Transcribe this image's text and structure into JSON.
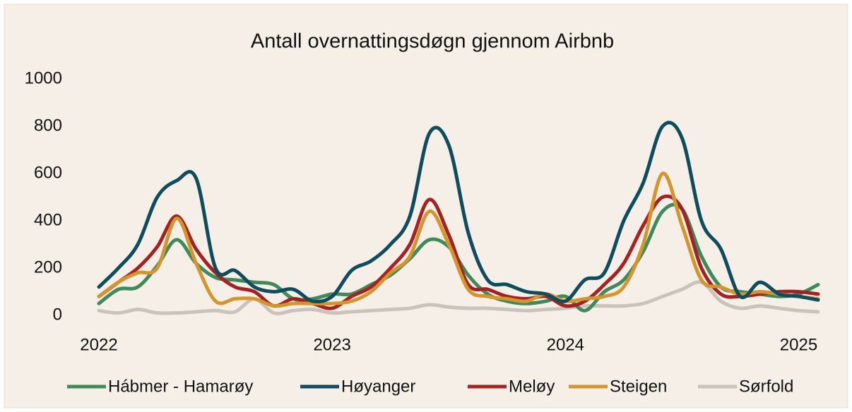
{
  "chart_data": {
    "type": "line",
    "title": "Antall overnattingsdøgn gjennom Airbnb",
    "categories": [
      "2022",
      null,
      null,
      null,
      null,
      null,
      null,
      null,
      null,
      null,
      null,
      null,
      "2023",
      null,
      null,
      null,
      null,
      null,
      null,
      null,
      null,
      null,
      null,
      null,
      "2024",
      null,
      null,
      null,
      null,
      null,
      null,
      null,
      null,
      null,
      null,
      null,
      "2025",
      null
    ],
    "series": [
      {
        "name": "Hábmer - Hamarøy",
        "color": "#3e8a5a",
        "values": [
          50,
          110,
          120,
          210,
          320,
          220,
          160,
          150,
          140,
          130,
          70,
          70,
          90,
          90,
          130,
          170,
          240,
          320,
          290,
          170,
          90,
          60,
          50,
          60,
          80,
          20,
          100,
          150,
          270,
          440,
          450,
          250,
          120,
          100,
          90,
          80,
          90,
          130
        ]
      },
      {
        "name": "Høyanger",
        "color": "#0e4d5e",
        "values": [
          120,
          200,
          300,
          500,
          570,
          580,
          200,
          190,
          120,
          100,
          110,
          60,
          80,
          190,
          230,
          300,
          420,
          770,
          720,
          350,
          150,
          130,
          100,
          90,
          60,
          150,
          180,
          400,
          560,
          800,
          750,
          400,
          280,
          80,
          140,
          90,
          80,
          65
        ]
      },
      {
        "name": "Meløy",
        "color": "#a32222",
        "values": [
          80,
          140,
          200,
          290,
          420,
          280,
          180,
          120,
          100,
          40,
          70,
          50,
          30,
          80,
          120,
          200,
          300,
          490,
          340,
          130,
          110,
          80,
          70,
          80,
          40,
          60,
          130,
          220,
          380,
          500,
          450,
          200,
          90,
          80,
          90,
          100,
          100,
          90
        ]
      },
      {
        "name": "Steigen",
        "color": "#d4952e",
        "values": [
          80,
          140,
          180,
          200,
          410,
          220,
          60,
          70,
          70,
          40,
          50,
          50,
          50,
          60,
          100,
          180,
          250,
          440,
          300,
          110,
          80,
          70,
          60,
          90,
          60,
          70,
          80,
          120,
          300,
          600,
          380,
          150,
          120,
          90,
          100,
          90,
          80,
          70
        ]
      },
      {
        "name": "Sørfold",
        "color": "#cbc3bb",
        "values": [
          20,
          10,
          25,
          10,
          10,
          15,
          20,
          15,
          70,
          10,
          20,
          25,
          10,
          15,
          20,
          25,
          30,
          45,
          35,
          30,
          30,
          25,
          20,
          25,
          30,
          40,
          40,
          40,
          50,
          80,
          110,
          140,
          60,
          30,
          40,
          30,
          20,
          15
        ]
      }
    ],
    "ylim": [
      0,
      1000
    ],
    "yticks": [
      0,
      200,
      400,
      600,
      800,
      1000
    ],
    "grid": false,
    "legend": "bottom"
  }
}
